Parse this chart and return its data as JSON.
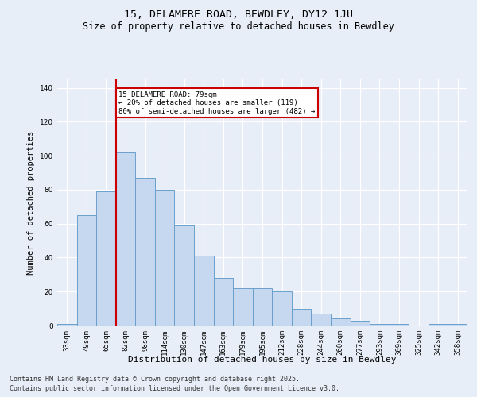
{
  "title1": "15, DELAMERE ROAD, BEWDLEY, DY12 1JU",
  "title2": "Size of property relative to detached houses in Bewdley",
  "xlabel": "Distribution of detached houses by size in Bewdley",
  "ylabel": "Number of detached properties",
  "categories": [
    "33sqm",
    "49sqm",
    "65sqm",
    "82sqm",
    "98sqm",
    "114sqm",
    "130sqm",
    "147sqm",
    "163sqm",
    "179sqm",
    "195sqm",
    "212sqm",
    "228sqm",
    "244sqm",
    "260sqm",
    "277sqm",
    "293sqm",
    "309sqm",
    "325sqm",
    "342sqm",
    "358sqm"
  ],
  "values": [
    1,
    65,
    79,
    102,
    87,
    80,
    59,
    41,
    28,
    22,
    22,
    20,
    10,
    7,
    4,
    3,
    1,
    1,
    0,
    1,
    1
  ],
  "bar_color": "#c5d8f0",
  "bar_edge_color": "#6aa0cc",
  "red_line_index": 2.5,
  "annotation_text": "15 DELAMERE ROAD: 79sqm\n← 20% of detached houses are smaller (119)\n80% of semi-detached houses are larger (482) →",
  "annotation_box_color": "#ffffff",
  "annotation_box_edge_color": "#cc0000",
  "red_line_color": "#cc0000",
  "background_color": "#e8eef8",
  "plot_bg_color": "#e8eef8",
  "grid_color": "#ffffff",
  "ylim": [
    0,
    145
  ],
  "yticks": [
    0,
    20,
    40,
    60,
    80,
    100,
    120,
    140
  ],
  "footnote1": "Contains HM Land Registry data © Crown copyright and database right 2025.",
  "footnote2": "Contains public sector information licensed under the Open Government Licence v3.0."
}
